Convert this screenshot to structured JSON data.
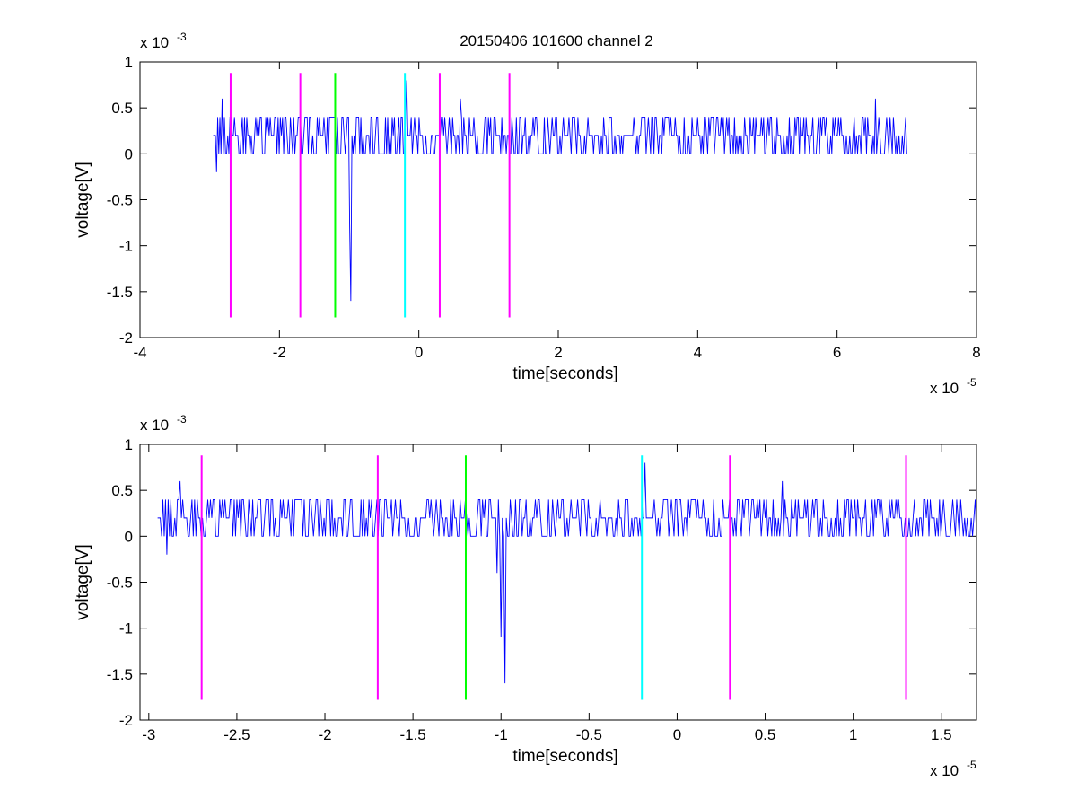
{
  "figure": {
    "title": "20150406 101600 channel 2"
  },
  "chart_data": [
    {
      "type": "line",
      "xlabel": "time[seconds]",
      "ylabel": "voltage[V]",
      "x_exponent": "x 10",
      "x_exponent_power": "-5",
      "y_exponent": "x 10",
      "y_exponent_power": "-3",
      "xlim": [
        -4e-05,
        8e-05
      ],
      "ylim": [
        -0.002,
        0.001
      ],
      "xticks": [
        -4e-05,
        -2e-05,
        0,
        2e-05,
        4e-05,
        6e-05,
        8e-05
      ],
      "xtick_labels": [
        "-4",
        "-2",
        "0",
        "2",
        "4",
        "6",
        "8"
      ],
      "yticks": [
        0.001,
        0.0005,
        0,
        -0.0005,
        -0.001,
        -0.0015,
        -0.002
      ],
      "ytick_labels": [
        "1",
        "0.5",
        "0",
        "-0.5",
        "-1",
        "-1.5",
        "-2"
      ],
      "grid": false,
      "signal": {
        "color": "#0000ff",
        "x_start": -2.95e-05,
        "x_end": 7e-05,
        "noise_levels": [
          0,
          0.0002,
          0.0004
        ],
        "spikes": [
          {
            "x": -2.82e-05,
            "y": 0.0006
          },
          {
            "x": -2.9e-05,
            "y": -0.0002
          },
          {
            "x": -9.8e-06,
            "y": -0.0016
          },
          {
            "x": -1e-05,
            "y": -0.0008
          },
          {
            "x": -1.8e-06,
            "y": 0.0008
          },
          {
            "x": 6e-06,
            "y": 0.0006
          },
          {
            "x": 6.55e-05,
            "y": 0.0006
          }
        ]
      },
      "markers": [
        {
          "x": -2.7e-05,
          "color": "#ff00ff"
        },
        {
          "x": -1.7e-05,
          "color": "#ff00ff"
        },
        {
          "x": -1.2e-05,
          "color": "#00ff00"
        },
        {
          "x": -2e-06,
          "color": "#00ffff"
        },
        {
          "x": 3e-06,
          "color": "#ff00ff"
        },
        {
          "x": 1.3e-05,
          "color": "#ff00ff"
        }
      ],
      "marker_range": [
        -0.00178,
        0.00088
      ]
    },
    {
      "type": "line",
      "xlabel": "time[seconds]",
      "ylabel": "voltage[V]",
      "x_exponent": "x 10",
      "x_exponent_power": "-5",
      "y_exponent": "x 10",
      "y_exponent_power": "-3",
      "xlim": [
        -3.05e-05,
        1.7e-05
      ],
      "ylim": [
        -0.002,
        0.001
      ],
      "xticks": [
        -3e-05,
        -2.5e-05,
        -2e-05,
        -1.5e-05,
        -1e-05,
        -5e-06,
        0,
        5e-06,
        1e-05,
        1.5e-05
      ],
      "xtick_labels": [
        "-3",
        "-2.5",
        "-2",
        "-1.5",
        "-1",
        "-0.5",
        "0",
        "0.5",
        "1",
        "1.5"
      ],
      "yticks": [
        0.001,
        0.0005,
        0,
        -0.0005,
        -0.001,
        -0.0015,
        -0.002
      ],
      "ytick_labels": [
        "1",
        "0.5",
        "0",
        "-0.5",
        "-1",
        "-1.5",
        "-2"
      ],
      "grid": false,
      "signal": {
        "color": "#0000ff",
        "x_start": -2.95e-05,
        "x_end": 1.7e-05,
        "noise_levels": [
          0,
          0.0002,
          0.0004
        ],
        "spikes": [
          {
            "x": -2.82e-05,
            "y": 0.0006
          },
          {
            "x": -2.9e-05,
            "y": -0.0002
          },
          {
            "x": -1.02e-05,
            "y": -0.0004
          },
          {
            "x": -9.8e-06,
            "y": -0.0016
          },
          {
            "x": -1e-05,
            "y": -0.0011
          },
          {
            "x": -1.8e-06,
            "y": 0.0008
          },
          {
            "x": 6e-06,
            "y": 0.0006
          }
        ]
      },
      "markers": [
        {
          "x": -2.7e-05,
          "color": "#ff00ff"
        },
        {
          "x": -1.7e-05,
          "color": "#ff00ff"
        },
        {
          "x": -1.2e-05,
          "color": "#00ff00"
        },
        {
          "x": -2e-06,
          "color": "#00ffff"
        },
        {
          "x": 3e-06,
          "color": "#ff00ff"
        },
        {
          "x": 1.3e-05,
          "color": "#ff00ff"
        }
      ],
      "marker_range": [
        -0.00178,
        0.00088
      ]
    }
  ]
}
